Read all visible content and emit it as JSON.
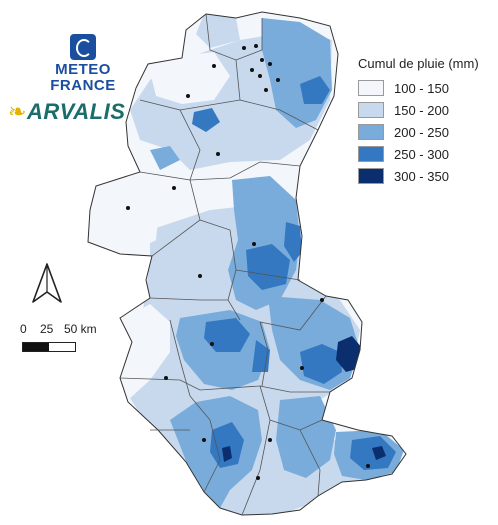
{
  "logos": {
    "meteo_line1": "METEO",
    "meteo_line2": "FRANCE",
    "arvalis": "ARVALIS"
  },
  "legend": {
    "title": "Cumul de pluie (mm)",
    "classes": [
      {
        "label": "100 - 150",
        "color": "#f3f7fc"
      },
      {
        "label": "150 - 200",
        "color": "#c8d9ee"
      },
      {
        "label": "200 - 250",
        "color": "#79acdb"
      },
      {
        "label": "250 - 300",
        "color": "#3478c2"
      },
      {
        "label": "300 - 350",
        "color": "#0b2f6e"
      }
    ]
  },
  "scale": {
    "ticks": [
      "0",
      "25",
      "50 km"
    ]
  },
  "north_arrow": {
    "icon": "north-arrow-icon"
  }
}
